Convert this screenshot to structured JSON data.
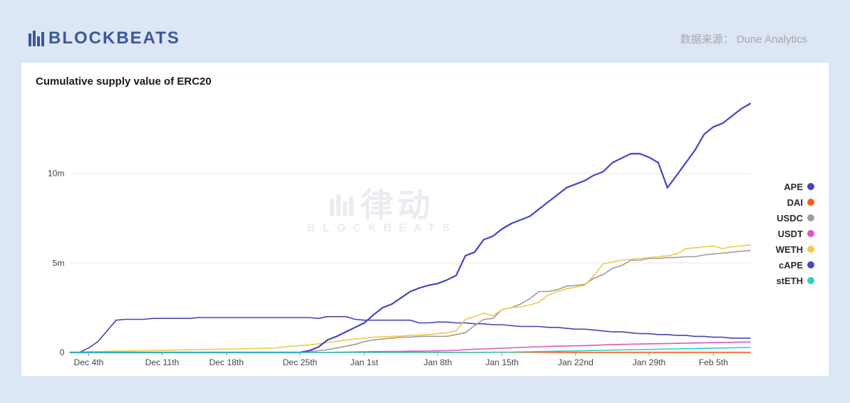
{
  "header": {
    "logo_text": "BLOCKBEATS",
    "logo_color": "#3b5998",
    "source_label": "数据来源：",
    "source_name": "Dune Analytics",
    "source_color": "#a8a8a8"
  },
  "background_color": "#dce6f5",
  "card_background": "#ffffff",
  "watermark": {
    "main": "律动",
    "sub": "BLOCKBEATS",
    "color": "rgba(160,170,190,0.22)"
  },
  "chart": {
    "type": "line",
    "title": "Cumulative supply value of ERC20",
    "title_fontsize": 15,
    "title_weight": 700,
    "axis_fontsize": 12,
    "axis_color": "#444444",
    "gridline_color": "#e8e8e8",
    "baseline_color": "#999999",
    "x": {
      "ticks": [
        "Dec 4th",
        "Dec 11th",
        "Dec 18th",
        "Dec 25th",
        "Jan 1st",
        "Jan 8th",
        "Jan 15th",
        "Jan 22nd",
        "Jan 29th",
        "Feb 5th"
      ],
      "n_points": 75
    },
    "y": {
      "lim": [
        0,
        14000000
      ],
      "ticks": [
        0,
        5000000,
        10000000
      ],
      "tick_labels": [
        "0",
        "5m",
        "10m"
      ]
    },
    "line_width": 1.6,
    "cape_line_width": 2.2,
    "legend_position": "right",
    "legend_fontsize": 13,
    "series": [
      {
        "name": "APE",
        "color": "#4646b5",
        "values": [
          0,
          0,
          250000,
          600000,
          1200000,
          1800000,
          1850000,
          1850000,
          1850000,
          1900000,
          1900000,
          1900000,
          1900000,
          1900000,
          1950000,
          1950000,
          1950000,
          1950000,
          1950000,
          1950000,
          1950000,
          1950000,
          1950000,
          1950000,
          1950000,
          1950000,
          1950000,
          1900000,
          2000000,
          2000000,
          2000000,
          1850000,
          1800000,
          1800000,
          1800000,
          1800000,
          1800000,
          1800000,
          1650000,
          1650000,
          1700000,
          1700000,
          1650000,
          1650000,
          1600000,
          1600000,
          1550000,
          1550000,
          1500000,
          1450000,
          1450000,
          1450000,
          1400000,
          1400000,
          1350000,
          1300000,
          1300000,
          1250000,
          1200000,
          1150000,
          1150000,
          1100000,
          1050000,
          1050000,
          1000000,
          1000000,
          950000,
          950000,
          900000,
          900000,
          850000,
          850000,
          800000,
          800000,
          800000
        ]
      },
      {
        "name": "DAI",
        "color": "#ff5a1f",
        "values": [
          0,
          0,
          0,
          0,
          0,
          0,
          0,
          0,
          0,
          0,
          0,
          0,
          0,
          0,
          0,
          0,
          0,
          0,
          0,
          0,
          0,
          0,
          0,
          0,
          0,
          0,
          0,
          0,
          0,
          0,
          0,
          0,
          5000,
          5000,
          5000,
          5000,
          5000,
          5000,
          5000,
          5000,
          5000,
          5000,
          5000,
          6000,
          6000,
          6000,
          6000,
          6000,
          7000,
          7000,
          7000,
          7000,
          7000,
          8000,
          8000,
          8000,
          8000,
          8000,
          8000,
          8000,
          9000,
          9000,
          9000,
          9000,
          9000,
          9000,
          9000,
          9000,
          9000,
          9000,
          9000,
          9000,
          9000,
          9000,
          9000
        ]
      },
      {
        "name": "USDC",
        "color": "#9d9d9d",
        "values": [
          0,
          0,
          0,
          0,
          0,
          0,
          0,
          0,
          0,
          0,
          0,
          0,
          0,
          0,
          0,
          0,
          0,
          0,
          0,
          0,
          0,
          0,
          0,
          0,
          0,
          0,
          50000,
          100000,
          150000,
          250000,
          350000,
          450000,
          600000,
          700000,
          750000,
          800000,
          850000,
          850000,
          900000,
          900000,
          900000,
          900000,
          1000000,
          1100000,
          1500000,
          1850000,
          1900000,
          2400000,
          2500000,
          2700000,
          3000000,
          3400000,
          3400000,
          3500000,
          3700000,
          3750000,
          3800000,
          4150000,
          4350000,
          4700000,
          4850000,
          5150000,
          5150000,
          5250000,
          5250000,
          5300000,
          5300000,
          5350000,
          5350000,
          5450000,
          5500000,
          5550000,
          5600000,
          5650000,
          5700000
        ]
      },
      {
        "name": "USDT",
        "color": "#e055c3",
        "values": [
          0,
          0,
          0,
          0,
          0,
          0,
          0,
          0,
          0,
          0,
          0,
          0,
          0,
          0,
          0,
          0,
          0,
          0,
          0,
          0,
          0,
          0,
          0,
          0,
          0,
          0,
          0,
          0,
          0,
          10000,
          20000,
          30000,
          40000,
          50000,
          50000,
          60000,
          60000,
          70000,
          70000,
          80000,
          90000,
          100000,
          120000,
          150000,
          180000,
          200000,
          220000,
          240000,
          260000,
          280000,
          300000,
          320000,
          340000,
          350000,
          360000,
          370000,
          380000,
          400000,
          420000,
          440000,
          450000,
          460000,
          470000,
          480000,
          490000,
          500000,
          510000,
          520000,
          530000,
          540000,
          550000,
          560000,
          570000,
          580000,
          590000
        ]
      },
      {
        "name": "WETH",
        "color": "#f2c94c",
        "values": [
          0,
          20000,
          40000,
          50000,
          60000,
          70000,
          80000,
          90000,
          100000,
          110000,
          120000,
          130000,
          140000,
          150000,
          160000,
          170000,
          180000,
          190000,
          200000,
          210000,
          220000,
          230000,
          240000,
          280000,
          350000,
          380000,
          420000,
          480000,
          550000,
          620000,
          700000,
          750000,
          800000,
          850000,
          870000,
          900000,
          920000,
          950000,
          980000,
          1000000,
          1050000,
          1100000,
          1200000,
          1850000,
          2000000,
          2200000,
          2050000,
          2400000,
          2500000,
          2550000,
          2650000,
          2800000,
          3200000,
          3400000,
          3550000,
          3650000,
          3750000,
          4300000,
          4950000,
          5050000,
          5150000,
          5200000,
          5250000,
          5300000,
          5350000,
          5400000,
          5500000,
          5800000,
          5850000,
          5900000,
          5950000,
          5800000,
          5900000,
          5950000,
          6000000
        ]
      },
      {
        "name": "cAPE",
        "color": "#4646c8",
        "values": [
          0,
          0,
          0,
          0,
          0,
          0,
          0,
          0,
          0,
          0,
          0,
          0,
          0,
          0,
          0,
          0,
          0,
          0,
          0,
          0,
          0,
          0,
          0,
          0,
          0,
          0,
          100000,
          300000,
          700000,
          900000,
          1150000,
          1400000,
          1650000,
          2100000,
          2500000,
          2700000,
          3050000,
          3400000,
          3600000,
          3750000,
          3850000,
          4050000,
          4300000,
          5400000,
          5600000,
          6300000,
          6500000,
          6900000,
          7200000,
          7400000,
          7600000,
          8000000,
          8400000,
          8800000,
          9200000,
          9400000,
          9600000,
          9900000,
          10100000,
          10600000,
          10850000,
          11100000,
          11100000,
          10900000,
          10600000,
          9200000,
          9900000,
          10600000,
          11300000,
          12200000,
          12600000,
          12800000,
          13200000,
          13600000,
          13900000
        ]
      },
      {
        "name": "stETH",
        "color": "#2dd4bf",
        "values": [
          0,
          0,
          0,
          0,
          0,
          0,
          0,
          0,
          0,
          0,
          0,
          0,
          0,
          0,
          0,
          0,
          0,
          0,
          0,
          0,
          0,
          0,
          0,
          0,
          0,
          0,
          0,
          0,
          0,
          0,
          0,
          0,
          0,
          0,
          0,
          0,
          0,
          0,
          0,
          0,
          0,
          0,
          0,
          0,
          0,
          5000,
          10000,
          15000,
          20000,
          30000,
          40000,
          50000,
          60000,
          70000,
          80000,
          90000,
          100000,
          110000,
          120000,
          130000,
          140000,
          150000,
          160000,
          170000,
          180000,
          190000,
          200000,
          210000,
          220000,
          230000,
          240000,
          250000,
          260000,
          270000,
          280000
        ]
      }
    ]
  }
}
